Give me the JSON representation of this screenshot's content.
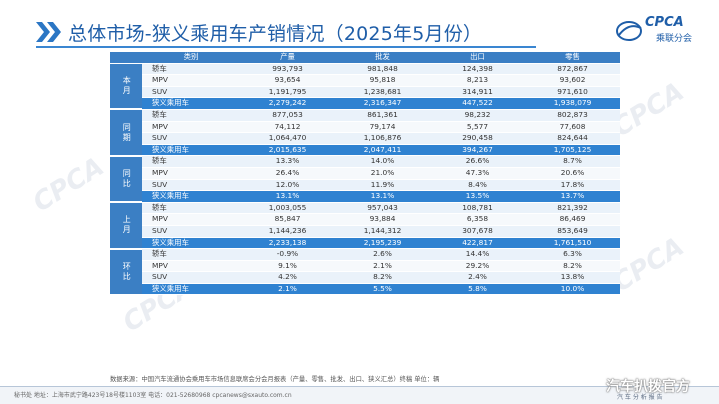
{
  "header": {
    "title": "总体市场-狭义乘用车产销情况（2025年5月份）",
    "logo_text": "CPCA",
    "logo_sub": "乘联分会",
    "accent_color": "#1f5ea8"
  },
  "table": {
    "columns": [
      "类别",
      "产量",
      "批发",
      "出口",
      "零售"
    ],
    "groups": [
      {
        "label": "本月",
        "rows": [
          {
            "type": "轿车",
            "values": [
              "993,793",
              "981,848",
              "124,398",
              "872,867"
            ]
          },
          {
            "type": "MPV",
            "values": [
              "93,654",
              "95,818",
              "8,213",
              "93,602"
            ]
          },
          {
            "type": "SUV",
            "values": [
              "1,191,795",
              "1,238,681",
              "314,911",
              "971,610"
            ]
          },
          {
            "type": "狭义乘用车",
            "values": [
              "2,279,242",
              "2,316,347",
              "447,522",
              "1,938,079"
            ]
          }
        ]
      },
      {
        "label": "同期",
        "rows": [
          {
            "type": "轿车",
            "values": [
              "877,053",
              "861,361",
              "98,232",
              "802,873"
            ]
          },
          {
            "type": "MPV",
            "values": [
              "74,112",
              "79,174",
              "5,577",
              "77,608"
            ]
          },
          {
            "type": "SUV",
            "values": [
              "1,064,470",
              "1,106,876",
              "290,458",
              "824,644"
            ]
          },
          {
            "type": "狭义乘用车",
            "values": [
              "2,015,635",
              "2,047,411",
              "394,267",
              "1,705,125"
            ]
          }
        ]
      },
      {
        "label": "同比",
        "rows": [
          {
            "type": "轿车",
            "values": [
              "13.3%",
              "14.0%",
              "26.6%",
              "8.7%"
            ]
          },
          {
            "type": "MPV",
            "values": [
              "26.4%",
              "21.0%",
              "47.3%",
              "20.6%"
            ]
          },
          {
            "type": "SUV",
            "values": [
              "12.0%",
              "11.9%",
              "8.4%",
              "17.8%"
            ]
          },
          {
            "type": "狭义乘用车",
            "values": [
              "13.1%",
              "13.1%",
              "13.5%",
              "13.7%"
            ]
          }
        ]
      },
      {
        "label": "上月",
        "rows": [
          {
            "type": "轿车",
            "values": [
              "1,003,055",
              "957,043",
              "108,781",
              "821,392"
            ]
          },
          {
            "type": "MPV",
            "values": [
              "85,847",
              "93,884",
              "6,358",
              "86,469"
            ]
          },
          {
            "type": "SUV",
            "values": [
              "1,144,236",
              "1,144,312",
              "307,678",
              "853,649"
            ]
          },
          {
            "type": "狭义乘用车",
            "values": [
              "2,233,138",
              "2,195,239",
              "422,817",
              "1,761,510"
            ]
          }
        ]
      },
      {
        "label": "环比",
        "rows": [
          {
            "type": "轿车",
            "values": [
              "-0.9%",
              "2.6%",
              "14.4%",
              "6.3%"
            ]
          },
          {
            "type": "MPV",
            "values": [
              "9.1%",
              "2.1%",
              "29.2%",
              "8.2%"
            ]
          },
          {
            "type": "SUV",
            "values": [
              "4.2%",
              "8.2%",
              "2.4%",
              "13.8%"
            ]
          },
          {
            "type": "狭义乘用车",
            "values": [
              "2.1%",
              "5.5%",
              "5.8%",
              "10.0%"
            ]
          }
        ]
      }
    ]
  },
  "footer": {
    "source": "数据来源：中国汽车流通协会乘用车市场信息联席会分会月报表（产量、零售、批发、出口、狭义汇总）终稿  单位：辆",
    "address": "秘书处  地址：上海市武宁路423号18号楼1103室  电话：021-52680968  cpcanews@sxauto.com.cn",
    "watermark": "汽车扒拨官方",
    "watermark_sub": "汽 车 分 析 报 告"
  }
}
